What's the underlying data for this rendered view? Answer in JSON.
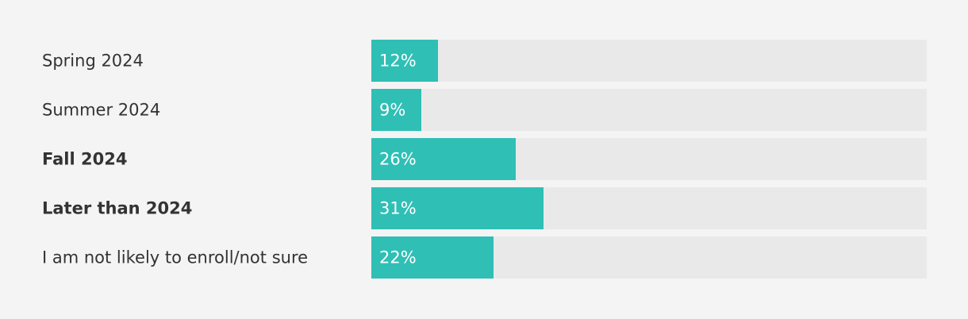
{
  "chart_data": {
    "type": "bar",
    "orientation": "horizontal",
    "categories": [
      "Spring 2024",
      "Summer 2024",
      "Fall 2024",
      "Later than 2024",
      "I am not likely to enroll/not sure"
    ],
    "bold": [
      false,
      false,
      true,
      true,
      false
    ],
    "values": [
      12,
      9,
      26,
      31,
      22
    ],
    "value_labels": [
      "12%",
      "9%",
      "26%",
      "31%",
      "22%"
    ],
    "color": "#2fbfb5",
    "track_color": "#e9e9e9",
    "xlim": [
      0,
      100
    ]
  }
}
